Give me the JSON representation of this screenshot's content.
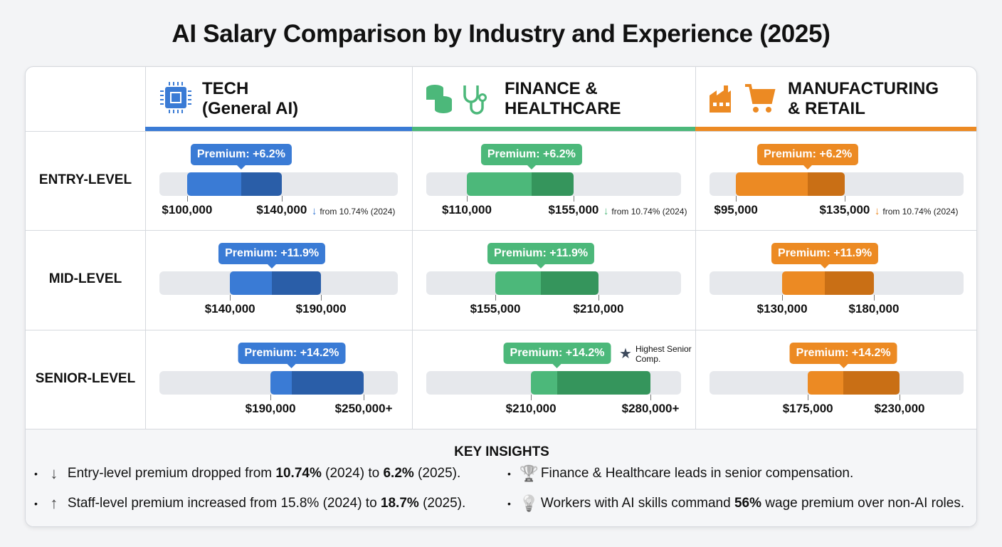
{
  "title": "AI Salary Comparison by Industry and Experience (2025)",
  "chart_data": {
    "type": "range-bar",
    "title": "AI Salary Comparison by Industry and Experience (2025)",
    "columns": [
      {
        "name_line1": "TECH",
        "name_line2": "(General AI)",
        "icon": "cpu-chip-icon",
        "color": "#3a7bd5",
        "dark": "#2a5ea8"
      },
      {
        "name_line1": "FINANCE &",
        "name_line2": "HEALTHCARE",
        "icon": "coins-stethoscope-icon",
        "color": "#4cb87a",
        "dark": "#35955c"
      },
      {
        "name_line1": "MANUFACTURING",
        "name_line2": "& RETAIL",
        "icon": "factory-cart-icon",
        "color": "#ec8a23",
        "dark": "#c96f15"
      }
    ],
    "rows": [
      "ENTRY-LEVEL",
      "MID-LEVEL",
      "SENIOR-LEVEL"
    ],
    "cells": [
      [
        {
          "min": "$100,000",
          "max": "$140,000",
          "premium": "Premium: +6.2%",
          "note": "from 10.74% (2024)"
        },
        {
          "min": "$140,000",
          "max": "$190,000",
          "premium": "Premium: +11.9%"
        },
        {
          "min": "$190,000",
          "max": "$250,000+",
          "premium": "Premium: +14.2%"
        }
      ],
      [
        {
          "min": "$110,000",
          "max": "$155,000",
          "premium": "Premium: +6.2%",
          "note": "from 10.74% (2024)"
        },
        {
          "min": "$155,000",
          "max": "$210,000",
          "premium": "Premium: +11.9%"
        },
        {
          "min": "$210,000",
          "max": "$280,000+",
          "premium": "Premium: +14.2%",
          "callout": "Highest Senior Comp."
        }
      ],
      [
        {
          "min": "$95,000",
          "max": "$135,000",
          "premium": "Premium: +6.2%",
          "note": "from 10.74% (2024)"
        },
        {
          "min": "$130,000",
          "max": "$180,000",
          "premium": "Premium: +11.9%"
        },
        {
          "min": "$175,000",
          "max": "$230,000",
          "premium": "Premium: +14.2%"
        }
      ]
    ]
  },
  "insights": {
    "heading": "KEY INSIGHTS",
    "items": [
      {
        "icon": "arrow-down-icon",
        "parts": [
          [
            "Entry-level premium dropped from ",
            0
          ],
          [
            "10.74%",
            1
          ],
          [
            " (2024) to ",
            0
          ],
          [
            "6.2%",
            1
          ],
          [
            " (2025).",
            0
          ]
        ]
      },
      {
        "icon": "arrow-up-icon",
        "parts": [
          [
            "Staff-level premium increased from 15.8% (2024) to ",
            0
          ],
          [
            "18.7%",
            1
          ],
          [
            " (2025).",
            0
          ]
        ]
      },
      {
        "icon": "trophy-icon",
        "parts": [
          [
            "Finance & Healthcare leads in senior compensation.",
            0
          ]
        ]
      },
      {
        "icon": "lightbulb-icon",
        "parts": [
          [
            "Workers with AI skills command ",
            0
          ],
          [
            "56%",
            1
          ],
          [
            " wage premium over non-AI roles.",
            0
          ]
        ]
      }
    ]
  }
}
